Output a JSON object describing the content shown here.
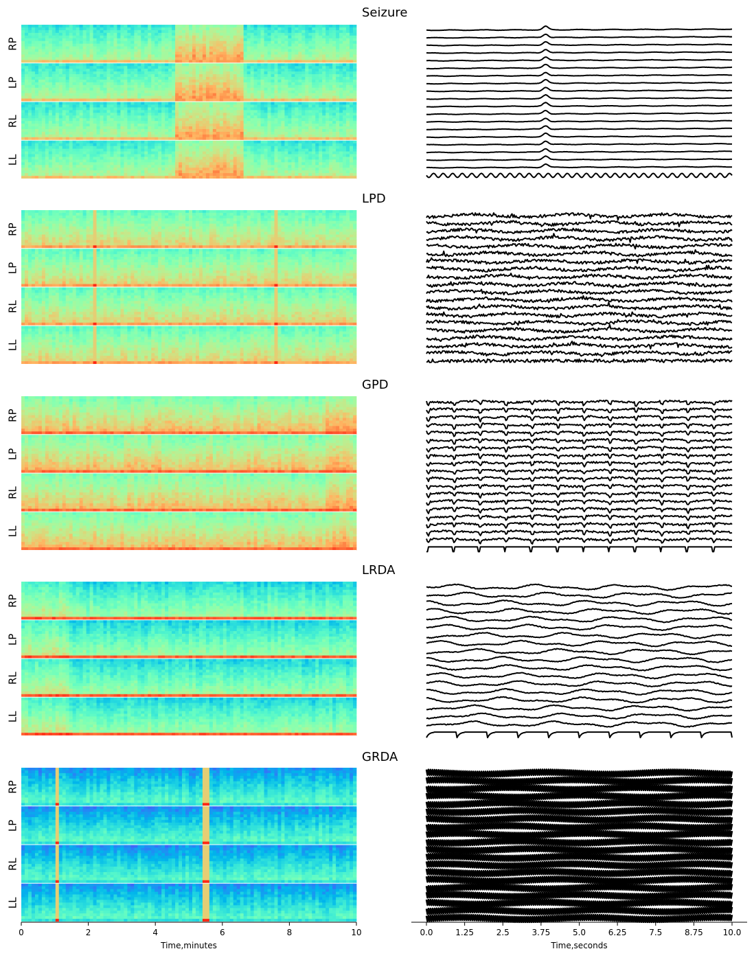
{
  "chart_data": {
    "type": "heatmap",
    "panels": [
      {
        "title": "Seizure",
        "channels": [
          "RP",
          "LP",
          "RL",
          "LL"
        ],
        "spectrogram": {
          "base": 0.36,
          "events": [
            {
              "t0": 4.6,
              "t1": 6.6,
              "level": 0.55
            }
          ],
          "spikes": [],
          "lowband": 0.72
        },
        "eeg": {
          "n_traces": 20,
          "style": "spike",
          "spike_t": 3.9,
          "last_trace": "sine"
        }
      },
      {
        "title": "LPD",
        "channels": [
          "RP",
          "LP",
          "RL",
          "LL"
        ],
        "spectrogram": {
          "base": 0.45,
          "events": [],
          "spikes": [
            2.2,
            7.6
          ],
          "lowband": 0.78
        },
        "eeg": {
          "n_traces": 20,
          "style": "noisy",
          "last_trace": "noisy"
        }
      },
      {
        "title": "GPD",
        "channels": [
          "RP",
          "LP",
          "RL",
          "LL"
        ],
        "spectrogram": {
          "base": 0.5,
          "events": [
            {
              "t0": 9.1,
              "t1": 10.0,
              "level": 0.55
            }
          ],
          "spikes": [],
          "lowband": 0.86
        },
        "eeg": {
          "n_traces": 20,
          "style": "periodic",
          "last_trace": "ticks"
        }
      },
      {
        "title": "LRDA",
        "channels": [
          "RP",
          "LP",
          "RL",
          "LL"
        ],
        "spectrogram": {
          "base": 0.32,
          "events": [
            {
              "t0": 0.0,
              "t1": 1.4,
              "level": 0.4
            }
          ],
          "spikes": [],
          "lowband": 0.88
        },
        "eeg": {
          "n_traces": 19,
          "style": "slow",
          "last_trace": "ticks"
        }
      },
      {
        "title": "GRDA",
        "channels": [
          "RP",
          "LP",
          "RL",
          "LL"
        ],
        "spectrogram": {
          "base": 0.2,
          "events": [],
          "spikes": [
            1.1,
            5.5
          ],
          "lowband": 0.35
        },
        "eeg": {
          "n_traces": 20,
          "style": "dense",
          "last_trace": "dense"
        }
      }
    ],
    "spectrogram_axis": {
      "xlabel": "Time,minutes",
      "xlim": [
        0,
        10
      ],
      "ticks": [
        "0",
        "2",
        "4",
        "6",
        "8",
        "10"
      ],
      "tick_values": [
        0,
        2,
        4,
        6,
        8,
        10
      ]
    },
    "eeg_axis": {
      "xlabel": "Time,seconds",
      "xlim": [
        0,
        10
      ],
      "ticks": [
        "0.0",
        "1.25",
        "2.5",
        "3.75",
        "5.0",
        "6.25",
        "7.5",
        "8.75",
        "10.0"
      ],
      "tick_values": [
        0,
        1.25,
        2.5,
        3.75,
        5,
        6.25,
        7.5,
        8.75,
        10
      ]
    },
    "colormap": "rainbow",
    "trace_color": "#000000"
  }
}
